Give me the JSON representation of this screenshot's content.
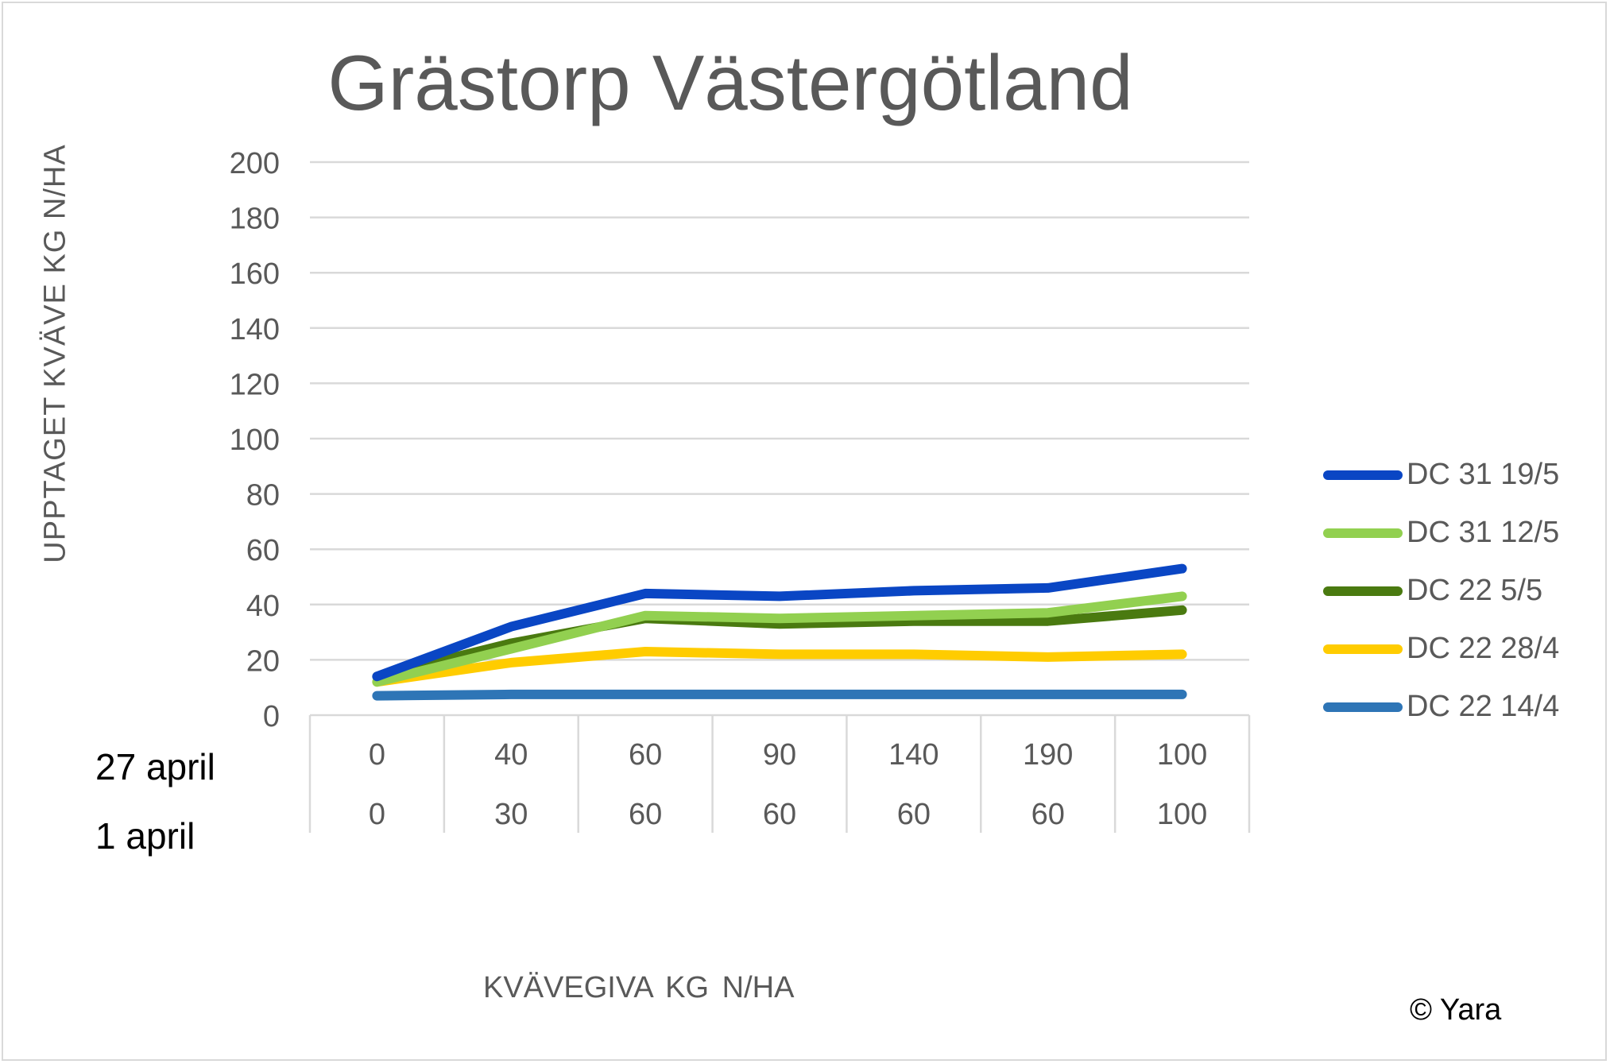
{
  "chart_data": {
    "type": "line",
    "title": "Grästorp Västergötland",
    "ylabel": "UPPTAGET KVÄVE KG N/HA",
    "xlabel": "KVÄVEGIVA  KG N/HA",
    "ylim": [
      0,
      200
    ],
    "yticks": [
      "0",
      "20",
      "40",
      "60",
      "80",
      "100",
      "120",
      "140",
      "160",
      "180",
      "200"
    ],
    "category_rows": [
      {
        "label": "27 april",
        "values": [
          "0",
          "40",
          "60",
          "90",
          "140",
          "190",
          "100"
        ]
      },
      {
        "label": "1 april",
        "values": [
          "0",
          "30",
          "60",
          "60",
          "60",
          "60",
          "100"
        ]
      }
    ],
    "series": [
      {
        "name": "DC 31 19/5",
        "color": "#0a46c4",
        "values": [
          14,
          32,
          44,
          43,
          45,
          46,
          53
        ]
      },
      {
        "name": "DC 31 12/5",
        "color": "#92d050",
        "values": [
          12,
          24,
          36,
          35,
          36,
          37,
          43
        ]
      },
      {
        "name": "DC 22 5/5",
        "color": "#4a7a10",
        "values": [
          14,
          26,
          35,
          33,
          34,
          34,
          38
        ]
      },
      {
        "name": "DC 22 28/4",
        "color": "#ffcc00",
        "values": [
          12,
          19,
          23,
          22,
          22,
          21,
          22
        ]
      },
      {
        "name": "DC 22 14/4",
        "color": "#2e75b6",
        "values": [
          7,
          7.5,
          7.5,
          7.5,
          7.5,
          7.5,
          7.5
        ]
      }
    ],
    "grid": true,
    "legend_position": "right"
  },
  "copyright": "© Yara"
}
